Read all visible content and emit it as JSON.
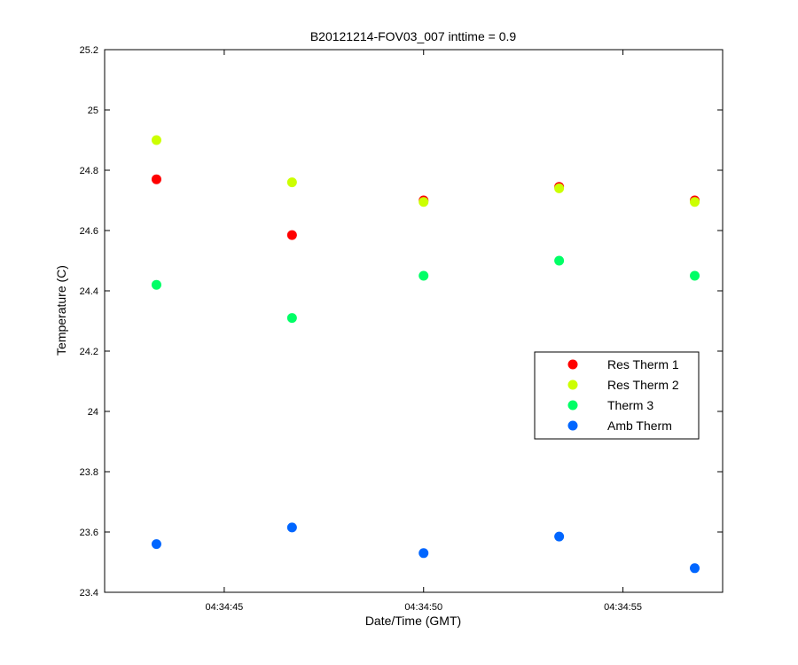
{
  "chart_data": {
    "type": "scatter",
    "title": "B20121214-FOV03_007 inttime = 0.9",
    "xlabel": "Date/Time (GMT)",
    "ylabel": "Temperature (C)",
    "x_unit": "time",
    "xlim": [
      "04:34:42.0",
      "04:34:57.5"
    ],
    "x_ticks": [
      "04:34:45",
      "04:34:50",
      "04:34:55"
    ],
    "ylim": [
      23.4,
      25.2
    ],
    "y_ticks": [
      "23.4",
      "23.6",
      "23.8",
      "24",
      "24.2",
      "24.4",
      "24.6",
      "24.8",
      "25",
      "25.2"
    ],
    "x": [
      "04:34:43.3",
      "04:34:46.7",
      "04:34:50.0",
      "04:34:53.4",
      "04:34:56.8"
    ],
    "grid": false,
    "legend_position": "right",
    "series": [
      {
        "name": "Res Therm 1",
        "color": "#ff0000",
        "values": [
          24.77,
          24.585,
          24.7,
          24.745,
          24.7
        ]
      },
      {
        "name": "Res Therm 2",
        "color": "#ccff00",
        "values": [
          24.9,
          24.76,
          24.695,
          24.74,
          24.695
        ]
      },
      {
        "name": "Therm 3",
        "color": "#00ff66",
        "values": [
          24.42,
          24.31,
          24.45,
          24.5,
          24.45
        ]
      },
      {
        "name": "Amb Therm",
        "color": "#0066ff",
        "values": [
          23.56,
          23.615,
          23.53,
          23.585,
          23.48
        ]
      }
    ]
  }
}
